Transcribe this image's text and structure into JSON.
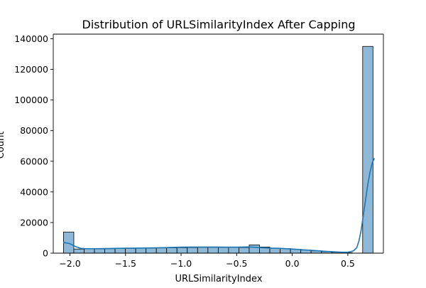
{
  "chart_data": {
    "type": "bar",
    "subtype": "histogram",
    "title": "Distribution of URLSimilarityIndex After Capping",
    "xlabel": "URLSimilarityIndex",
    "ylabel": "Count",
    "xlim": [
      -2.15,
      0.82
    ],
    "ylim": [
      0,
      143000
    ],
    "x_ticks": [
      -2.0,
      -1.5,
      -1.0,
      -0.5,
      0.0,
      0.5
    ],
    "x_tick_labels": [
      "−2.0",
      "−1.5",
      "−1.0",
      "−0.5",
      "0.0",
      "0.5"
    ],
    "y_ticks": [
      0,
      20000,
      40000,
      60000,
      80000,
      100000,
      120000,
      140000
    ],
    "y_tick_labels": [
      "0",
      "20000",
      "40000",
      "60000",
      "80000",
      "100000",
      "120000",
      "140000"
    ],
    "bin_width": 0.0928,
    "bin_starts": [
      -2.0578,
      -1.965,
      -1.8722,
      -1.7794,
      -1.6866,
      -1.5938,
      -1.501,
      -1.4082,
      -1.3154,
      -1.2226,
      -1.1298,
      -1.037,
      -0.9442,
      -0.8514,
      -0.7586,
      -0.6658,
      -0.573,
      -0.4802,
      -0.3874,
      -0.2946,
      -0.2018,
      -0.109,
      -0.0162,
      0.0766,
      0.1694,
      0.2622,
      0.355,
      0.4478,
      0.5406,
      0.6334
    ],
    "counts": [
      13800,
      2700,
      2800,
      2800,
      2900,
      3000,
      3100,
      3200,
      3300,
      3400,
      3500,
      3600,
      3700,
      3800,
      3800,
      3800,
      3800,
      3700,
      5400,
      4000,
      3300,
      3000,
      2500,
      2000,
      1500,
      1000,
      600,
      300,
      0,
      135000
    ],
    "kde": {
      "x": [
        -2.06,
        -2.0,
        -1.95,
        -1.9,
        -1.85,
        -1.8,
        -1.7,
        -1.6,
        -1.5,
        -1.4,
        -1.3,
        -1.2,
        -1.1,
        -1.0,
        -0.9,
        -0.8,
        -0.7,
        -0.6,
        -0.5,
        -0.45,
        -0.4,
        -0.3,
        -0.2,
        -0.1,
        0.0,
        0.1,
        0.2,
        0.3,
        0.4,
        0.45,
        0.5,
        0.55,
        0.58,
        0.6,
        0.62,
        0.64,
        0.66,
        0.68,
        0.7,
        0.72,
        0.74
      ],
      "y": [
        7000,
        6200,
        4300,
        3100,
        2900,
        2900,
        3000,
        3100,
        3200,
        3300,
        3400,
        3500,
        3700,
        3900,
        4000,
        4000,
        4000,
        3900,
        3900,
        4000,
        4100,
        3700,
        3300,
        3100,
        2700,
        2200,
        1700,
        1200,
        800,
        600,
        600,
        1500,
        3500,
        8000,
        15000,
        25000,
        35000,
        45000,
        53000,
        59000,
        62000
      ]
    },
    "colors": {
      "bar_fill": "#8db8d8",
      "bar_edge": "#000000",
      "kde_line": "#1f77b4"
    },
    "grid": false,
    "legend": "none"
  }
}
